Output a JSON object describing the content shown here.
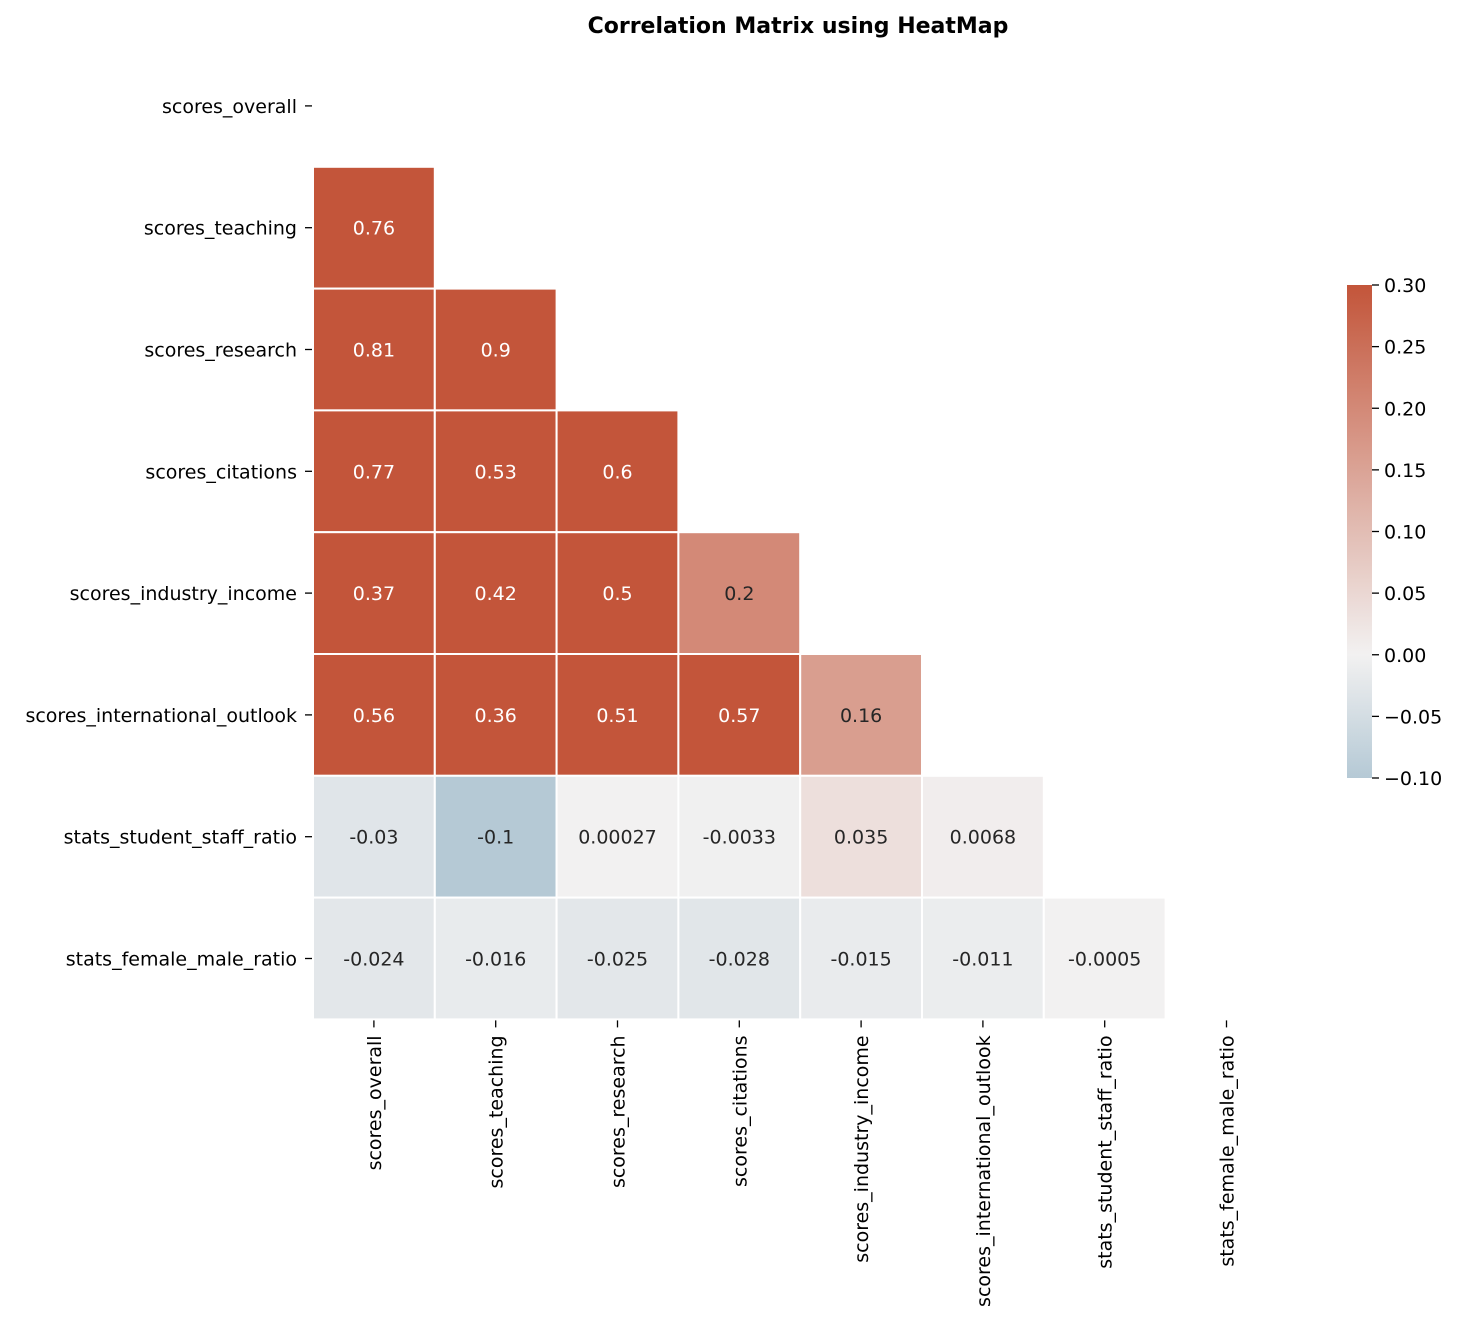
{
  "chart_data": {
    "type": "heatmap",
    "title": "Correlation Matrix using HeatMap",
    "mask": "upper-triangle-including-diagonal",
    "row_labels": [
      "scores_overall",
      "scores_teaching",
      "scores_research",
      "scores_citations",
      "scores_industry_income",
      "scores_international_outlook",
      "stats_student_staff_ratio",
      "stats_female_male_ratio"
    ],
    "col_labels": [
      "scores_overall",
      "scores_teaching",
      "scores_research",
      "scores_citations",
      "scores_industry_income",
      "scores_international_outlook",
      "stats_student_staff_ratio",
      "stats_female_male_ratio"
    ],
    "values": [
      [],
      [
        0.76
      ],
      [
        0.81,
        0.9
      ],
      [
        0.77,
        0.53,
        0.6
      ],
      [
        0.37,
        0.42,
        0.5,
        0.2
      ],
      [
        0.56,
        0.36,
        0.51,
        0.57,
        0.16
      ],
      [
        -0.03,
        -0.1,
        0.00027,
        -0.0033,
        0.035,
        0.0068
      ],
      [
        -0.024,
        -0.016,
        -0.025,
        -0.028,
        -0.015,
        -0.011,
        -0.0005
      ]
    ],
    "value_labels": [
      [],
      [
        "0.76"
      ],
      [
        "0.81",
        "0.9"
      ],
      [
        "0.77",
        "0.53",
        "0.6"
      ],
      [
        "0.37",
        "0.42",
        "0.5",
        "0.2"
      ],
      [
        "0.56",
        "0.36",
        "0.51",
        "0.57",
        "0.16"
      ],
      [
        "-0.03",
        "-0.1",
        "0.00027",
        "-0.0033",
        "0.035",
        "0.0068"
      ],
      [
        "-0.024",
        "-0.016",
        "-0.025",
        "-0.028",
        "-0.015",
        "-0.011",
        "-0.0005"
      ]
    ],
    "colorbar": {
      "vmin": -0.1,
      "vmax": 0.3,
      "center": 0,
      "ticks": [
        0.3,
        0.25,
        0.2,
        0.15,
        0.1,
        0.05,
        0.0,
        -0.05,
        -0.1
      ],
      "tick_labels": [
        "0.30",
        "0.25",
        "0.20",
        "0.15",
        "0.10",
        "0.05",
        "0.00",
        "−0.05",
        "−0.10"
      ],
      "placement": "right"
    },
    "colors": {
      "low": "#b5c9d5",
      "mid": "#f2f1f1",
      "high": "#c3553a",
      "grid_line": "#ffffff",
      "dark_text": "#262626",
      "light_text": "#ffffff"
    },
    "grid": false
  }
}
